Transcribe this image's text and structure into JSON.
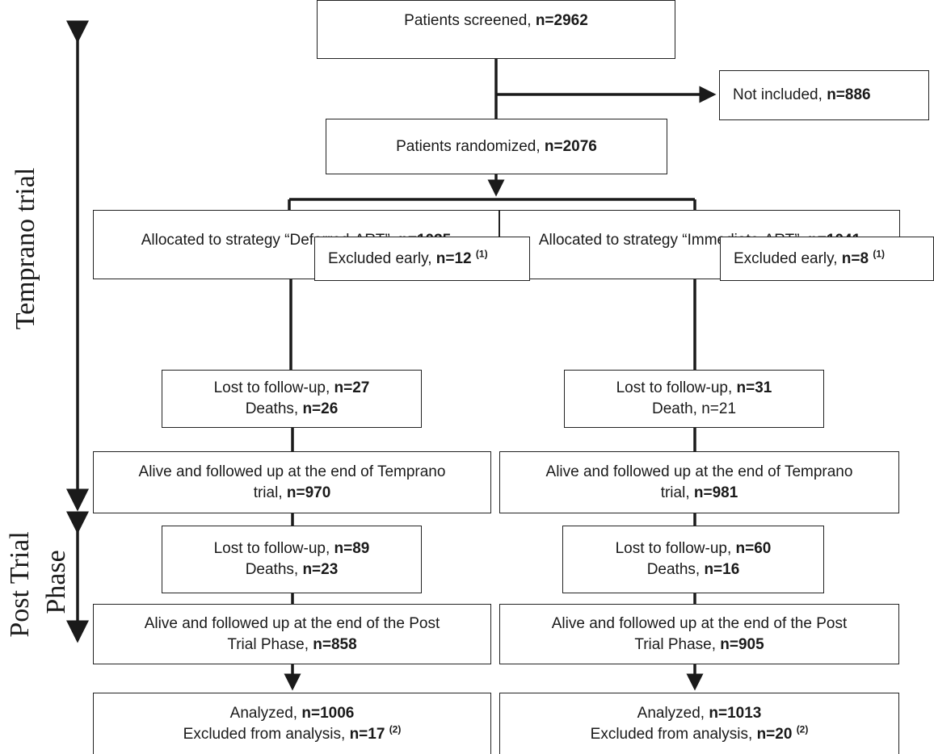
{
  "side_labels": {
    "temprano": "Temprano  trial",
    "post_trial_1": "Post Trial",
    "post_trial_2": "Phase"
  },
  "screened": {
    "text": "Patients screened, ",
    "n": "n=2962"
  },
  "not_included": {
    "text": "Not included, ",
    "n": "n=886"
  },
  "randomized": {
    "text": "Patients randomized, ",
    "n": "n=2076"
  },
  "deferred": {
    "allocated": {
      "text": "Allocated to strategy “Deferred-ART”, ",
      "n": "n=1035"
    },
    "excluded_early": {
      "text": "Excluded early, ",
      "n": "n=12",
      "note": "(1)"
    },
    "lost1": {
      "lost_text": "Lost to follow-up, ",
      "lost_n": "n=27",
      "deaths_text": "Deaths, ",
      "deaths_n": "n=26"
    },
    "alive1": {
      "line1": "Alive and followed up at the end of Temprano",
      "line2_text": "trial, ",
      "line2_n": "n=970"
    },
    "lost2": {
      "lost_text": "Lost to follow-up, ",
      "lost_n": "n=89",
      "deaths_text": "Deaths, ",
      "deaths_n": "n=23"
    },
    "alive2": {
      "line1": "Alive and followed up at the end of the Post",
      "line2_text": "Trial Phase, ",
      "line2_n": "n=858"
    },
    "analyzed": {
      "text": "Analyzed, ",
      "n": "n=1006",
      "excl_text": "Excluded from analysis, ",
      "excl_n": "n=17",
      "note": "(2)"
    }
  },
  "immediate": {
    "allocated": {
      "text": "Allocated to strategy “Immediate-ART”, ",
      "n": "n=1041"
    },
    "excluded_early": {
      "text": "Excluded early, ",
      "n": "n=8",
      "note": "(1)"
    },
    "lost1": {
      "lost_text": "Lost to follow-up, ",
      "lost_n": "n=31",
      "deaths_text": "Death, ",
      "deaths_n": "n=21"
    },
    "alive1": {
      "line1": "Alive and followed up at the end of Temprano",
      "line2_text": "trial, ",
      "line2_n": "n=981"
    },
    "lost2": {
      "lost_text": "Lost to follow-up, ",
      "lost_n": "n=60",
      "deaths_text": "Deaths, ",
      "deaths_n": "n=16"
    },
    "alive2": {
      "line1": "Alive and followed up at the end of the Post",
      "line2_text": "Trial Phase, ",
      "line2_n": "n=905"
    },
    "analyzed": {
      "text": "Analyzed, ",
      "n": "n=1013",
      "excl_text": "Excluded from analysis, ",
      "excl_n": "n=20",
      "note": "(2)"
    }
  }
}
